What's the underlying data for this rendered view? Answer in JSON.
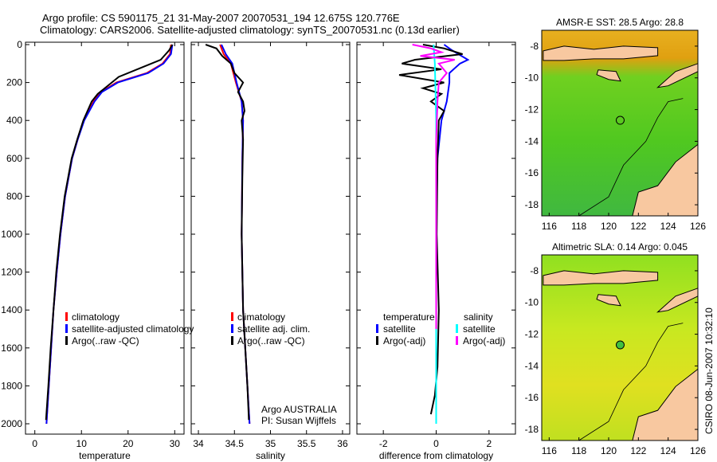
{
  "title_line1": "Argo profile: CS 5901175_21 31-May-2007 20070531_194 12.675S 120.776E",
  "title_line2": "Climatology: CARS2006. Satellite-adjusted climatology: synTS_20070531.nc (0.13d earlier)",
  "side_stamp": "CSIRO 08-Jun-2007 10:32:10",
  "argo_note1": "Argo AUSTRALIA",
  "argo_note2": "PI: Susan Wijffels",
  "colors": {
    "climatology": "#ff0000",
    "satellite": "#0000ff",
    "argo": "#000000",
    "sal_sat": "#00ffff",
    "sal_argo": "#ff00ff"
  },
  "chart_data": [
    {
      "type": "line",
      "xlabel": "temperature",
      "ylabel": "",
      "xlim": [
        -2,
        32
      ],
      "ylim": [
        2050,
        0
      ],
      "xticks": [
        "0",
        "10",
        "20",
        "30"
      ],
      "xtickvals": [
        0,
        10,
        20,
        30
      ],
      "yticks": [
        "0",
        "200",
        "400",
        "600",
        "800",
        "1000",
        "1200",
        "1400",
        "1600",
        "1800",
        "2000"
      ],
      "legend": [
        "climatology",
        "satellite-adjusted climatology",
        "Argo(..raw -QC)"
      ],
      "series": [
        {
          "name": "climatology",
          "color": "#ff0000",
          "depth": [
            0,
            50,
            100,
            150,
            200,
            250,
            300,
            400,
            500,
            600,
            800,
            1000,
            1200,
            1400,
            1600,
            1800,
            2000
          ],
          "values": [
            29.2,
            29,
            27.4,
            24,
            17.5,
            14.2,
            12.6,
            10.5,
            9.2,
            8,
            6.5,
            5.5,
            4.7,
            4,
            3.5,
            3,
            2.5
          ]
        },
        {
          "name": "satellite-adjusted climatology",
          "color": "#0000ff",
          "depth": [
            0,
            50,
            100,
            150,
            200,
            250,
            300,
            400,
            500,
            600,
            800,
            1000,
            1200,
            1400,
            1600,
            1800,
            2000
          ],
          "values": [
            29.5,
            29.2,
            27.6,
            24.3,
            17.8,
            14.4,
            12.8,
            10.6,
            9.2,
            8,
            6.5,
            5.5,
            4.7,
            4,
            3.5,
            3,
            2.5
          ]
        },
        {
          "name": "Argo(..raw -QC)",
          "color": "#000000",
          "depth": [
            0,
            30,
            80,
            120,
            170,
            220,
            260,
            300,
            400,
            500,
            600,
            800,
            1000,
            1200,
            1400,
            1600,
            1800,
            1980
          ],
          "values": [
            29.5,
            28.8,
            27,
            23,
            18,
            15.5,
            13.5,
            12.2,
            10.4,
            9.1,
            7.9,
            6.4,
            5.4,
            4.6,
            4,
            3.4,
            2.9,
            2.4
          ]
        }
      ]
    },
    {
      "type": "line",
      "xlabel": "salinity",
      "ylabel": "",
      "xlim": [
        33.9,
        36.1
      ],
      "ylim": [
        2050,
        0
      ],
      "xticks": [
        "34",
        "34.5",
        "35",
        "35.5",
        "36"
      ],
      "xtickvals": [
        34,
        34.5,
        35,
        35.5,
        36
      ],
      "legend": [
        "climatology",
        "satellite adj. clim.",
        "Argo(..raw -QC)"
      ],
      "series": [
        {
          "name": "climatology",
          "color": "#ff0000",
          "depth": [
            0,
            50,
            100,
            200,
            300,
            400,
            600,
            1000,
            1400,
            1800,
            2000
          ],
          "values": [
            34.3,
            34.35,
            34.45,
            34.52,
            34.6,
            34.62,
            34.61,
            34.6,
            34.62,
            34.68,
            34.71
          ]
        },
        {
          "name": "satellite adj. clim.",
          "color": "#0000ff",
          "depth": [
            0,
            50,
            100,
            200,
            300,
            400,
            600,
            1000,
            1400,
            1800,
            2000
          ],
          "values": [
            34.32,
            34.38,
            34.47,
            34.53,
            34.6,
            34.62,
            34.61,
            34.6,
            34.62,
            34.68,
            34.71
          ]
        },
        {
          "name": "Argo(..raw -QC)",
          "color": "#000000",
          "depth": [
            0,
            20,
            60,
            100,
            150,
            200,
            250,
            300,
            350,
            400,
            500,
            700,
            1000,
            1400,
            1800,
            1980
          ],
          "values": [
            34.1,
            34.25,
            34.33,
            34.45,
            34.5,
            34.62,
            34.55,
            34.62,
            34.64,
            34.6,
            34.62,
            34.61,
            34.6,
            34.62,
            34.68,
            34.7
          ]
        }
      ]
    },
    {
      "type": "line",
      "xlabel": "difference from climatology",
      "ylabel": "",
      "xlim": [
        -3,
        3
      ],
      "ylim": [
        2050,
        0
      ],
      "xticks": [
        "-2",
        "0",
        "2"
      ],
      "xtickvals": [
        -2,
        0,
        2
      ],
      "legend_titles": [
        "temperature",
        "salinity"
      ],
      "legend": [
        "satellite",
        "Argo(-adj)",
        "satellite",
        "Argo(-adj)"
      ],
      "series": [
        {
          "name": "temperature satellite",
          "color": "#0000ff",
          "depth": [
            0,
            30,
            80,
            100,
            150,
            200,
            300,
            400,
            600,
            1000,
            1400,
            2000
          ],
          "values": [
            0.3,
            0.6,
            1.2,
            0.9,
            0.5,
            0.5,
            0.4,
            0.2,
            0.05,
            0,
            0,
            0
          ]
        },
        {
          "name": "temperature Argo(-adj)",
          "color": "#000000",
          "depth": [
            0,
            20,
            50,
            80,
            100,
            130,
            160,
            200,
            230,
            260,
            300,
            350,
            400,
            600,
            1000,
            1400,
            1700,
            1850,
            1950
          ],
          "values": [
            -0.5,
            0.3,
            1.0,
            -0.8,
            -1.3,
            0.2,
            -1.4,
            0.3,
            -0.5,
            0.2,
            -0.2,
            0.3,
            0.1,
            0.05,
            0.02,
            0.1,
            0.05,
            -0.05,
            -0.2
          ]
        },
        {
          "name": "salinity satellite",
          "color": "#00ffff",
          "depth": [
            0,
            100,
            400,
            1000,
            2000
          ],
          "values": [
            -0.1,
            -0.05,
            0,
            0,
            0
          ]
        },
        {
          "name": "salinity Argo(-adj)",
          "color": "#ff00ff",
          "depth": [
            0,
            20,
            40,
            60,
            80,
            100,
            150,
            200,
            300,
            500,
            1000,
            1500
          ],
          "values": [
            -0.9,
            -0.2,
            0.2,
            -0.6,
            0.7,
            0.1,
            0.4,
            0.1,
            0.05,
            0,
            0,
            0
          ]
        }
      ]
    }
  ],
  "maps": [
    {
      "title": "AMSR-E SST: 28.5 Argo: 28.8",
      "xticks": [
        "116",
        "118",
        "120",
        "122",
        "124",
        "126"
      ],
      "yticks": [
        "-8",
        "-10",
        "-12",
        "-14",
        "-16",
        "-18"
      ]
    },
    {
      "title": "Altimetric SLA: 0.14 Argo: 0.045",
      "xticks": [
        "116",
        "118",
        "120",
        "122",
        "124",
        "126"
      ],
      "yticks": [
        "-8",
        "-10",
        "-12",
        "-14",
        "-16",
        "-18"
      ]
    }
  ]
}
